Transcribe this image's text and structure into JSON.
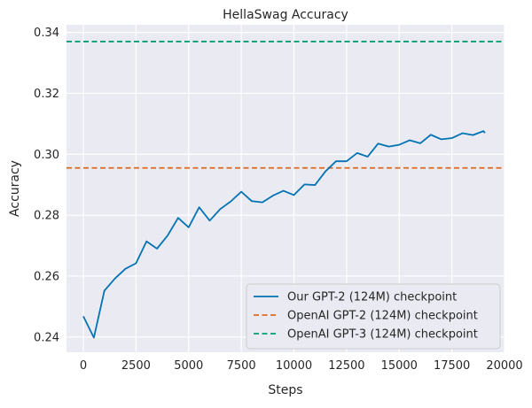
{
  "chart_data": {
    "type": "line",
    "title": "HellaSwag Accuracy",
    "xlabel": "Steps",
    "ylabel": "Accuracy",
    "xlim": [
      -800,
      20000
    ],
    "ylim": [
      0.235,
      0.3425
    ],
    "xticks": [
      0,
      2500,
      5000,
      7500,
      10000,
      12500,
      15000,
      17500,
      20000
    ],
    "xtick_labels": [
      "0",
      "2500",
      "5000",
      "7500",
      "10000",
      "12500",
      "15000",
      "17500",
      "20000"
    ],
    "yticks": [
      0.24,
      0.26,
      0.28,
      0.3,
      0.32,
      0.34
    ],
    "ytick_labels": [
      "0.24",
      "0.26",
      "0.28",
      "0.30",
      "0.32",
      "0.34"
    ],
    "grid": true,
    "legend_position": "lower-right",
    "series": [
      {
        "name": "Our GPT-2 (124M) checkpoint",
        "style": "solid",
        "color": "#0173b2",
        "x": [
          0,
          500,
          1000,
          1500,
          2000,
          2500,
          3000,
          3500,
          4000,
          4500,
          5000,
          5500,
          6000,
          6500,
          7000,
          7500,
          8000,
          8500,
          9000,
          9500,
          10000,
          10500,
          11000,
          11500,
          12000,
          12500,
          13000,
          13500,
          14000,
          14500,
          15000,
          15500,
          16000,
          16500,
          17000,
          17500,
          18000,
          18500,
          19000,
          19073
        ],
        "y": [
          0.2468,
          0.2398,
          0.2552,
          0.2592,
          0.2624,
          0.2642,
          0.2714,
          0.269,
          0.2733,
          0.2791,
          0.276,
          0.2826,
          0.2782,
          0.282,
          0.2845,
          0.2877,
          0.2846,
          0.2842,
          0.2864,
          0.288,
          0.2866,
          0.2901,
          0.2899,
          0.2944,
          0.2977,
          0.2977,
          0.3004,
          0.2992,
          0.3035,
          0.3025,
          0.3031,
          0.3046,
          0.3036,
          0.3064,
          0.3049,
          0.3053,
          0.3069,
          0.3063,
          0.3076,
          0.307
        ]
      },
      {
        "name": "OpenAI GPT-2 (124M) checkpoint",
        "style": "dashed",
        "color": "#de6a1f",
        "hline": 0.2955
      },
      {
        "name": "OpenAI GPT-3 (124M) checkpoint",
        "style": "dashed",
        "color": "#029e73",
        "hline": 0.337
      }
    ],
    "colors": {
      "plot_background": "#eaeaf2",
      "grid": "#ffffff",
      "legend_background": "#eaeaf2"
    }
  }
}
